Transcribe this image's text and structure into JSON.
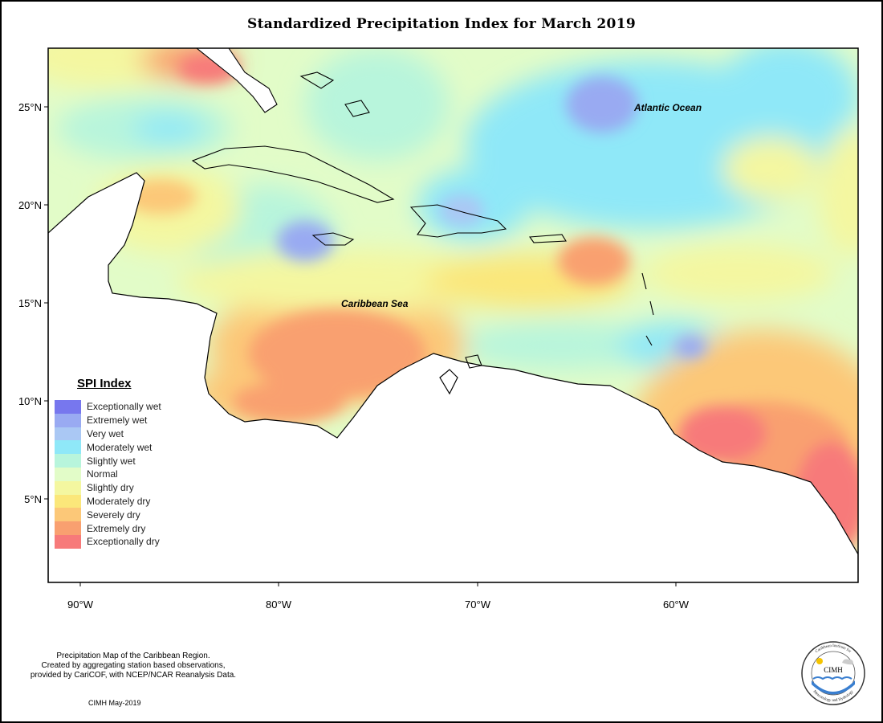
{
  "title": "Standardized Precipitation Index for March 2019",
  "map": {
    "lon_range": [
      -92,
      -51
    ],
    "lat_range": [
      1,
      28
    ],
    "x_ticks": [
      "90°W",
      "80°W",
      "70°W",
      "60°W"
    ],
    "y_ticks": [
      "25°N",
      "20°N",
      "15°N",
      "10°N",
      "5°N"
    ],
    "labels": {
      "atlantic": "Atlantic Ocean",
      "caribbean": "Caribbean Sea"
    }
  },
  "legend": {
    "title": "SPI Index",
    "items": [
      {
        "label": "Exceptionally wet",
        "color": "#7777ee"
      },
      {
        "label": "Extremely wet",
        "color": "#99aaf2"
      },
      {
        "label": "Very wet",
        "color": "#aac8f4"
      },
      {
        "label": "Moderately wet",
        "color": "#8fe8f8"
      },
      {
        "label": "Slightly wet",
        "color": "#b8f5dc"
      },
      {
        "label": "Normal",
        "color": "#e2fcc8"
      },
      {
        "label": "Slightly dry",
        "color": "#f4f7a0"
      },
      {
        "label": "Moderately dry",
        "color": "#fbe77a"
      },
      {
        "label": "Severely dry",
        "color": "#fcc878"
      },
      {
        "label": "Extremely dry",
        "color": "#f9a070"
      },
      {
        "label": "Exceptionally dry",
        "color": "#f77a7a"
      }
    ]
  },
  "credits": {
    "line1": "Precipitation Map of the Caribbean Region.",
    "line2": "Created by aggregating station based observations,",
    "line3": "provided by CariCOF, with NCEP/NCAR Reanalysis Data.",
    "date": "CIMH May-2019"
  },
  "logo": {
    "name": "CIMH",
    "top_text": "Caribbean Institute for",
    "bottom_text": "Meteorology and Hydrology"
  }
}
